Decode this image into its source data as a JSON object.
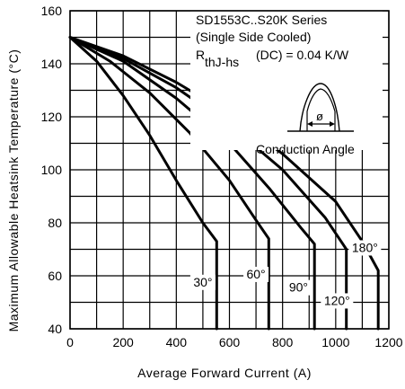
{
  "chart_data": {
    "type": "line",
    "title_lines": [
      "SD1553C..S20K Series",
      "(Single Side Cooled)",
      "R",
      "thJ-hs",
      "(DC) = 0.04 K/W"
    ],
    "xlabel": "Average Forward Current (A)",
    "ylabel": "Maximum Allowable Heatsink Temperature (°C)",
    "xlim": [
      0,
      1200
    ],
    "ylim": [
      40,
      160
    ],
    "xticks": [
      0,
      200,
      400,
      600,
      800,
      1000,
      1200
    ],
    "yticks": [
      40,
      60,
      80,
      100,
      120,
      140,
      160
    ],
    "grid": true,
    "inset_label": "Conduction Angle",
    "inset_symbol": "ø",
    "series": [
      {
        "name": "30°",
        "x": [
          0,
          100,
          200,
          300,
          400,
          500,
          552,
          552
        ],
        "y": [
          150,
          141,
          128,
          113,
          96,
          80,
          73,
          40
        ]
      },
      {
        "name": "60°",
        "x": [
          0,
          150,
          300,
          450,
          600,
          700,
          748,
          748
        ],
        "y": [
          150,
          141,
          129,
          114,
          96,
          81,
          74,
          40
        ]
      },
      {
        "name": "90°",
        "x": [
          0,
          200,
          400,
          600,
          750,
          870,
          920,
          920
        ],
        "y": [
          150,
          141,
          127,
          110,
          93,
          78,
          72,
          40
        ]
      },
      {
        "name": "120°",
        "x": [
          0,
          200,
          400,
          600,
          800,
          960,
          1040,
          1040
        ],
        "y": [
          150,
          142,
          131,
          117,
          100,
          82,
          70,
          40
        ]
      },
      {
        "name": "180°",
        "x": [
          0,
          200,
          400,
          600,
          800,
          1000,
          1100,
          1160,
          1160
        ],
        "y": [
          150,
          143,
          133,
          121,
          106,
          88,
          73,
          62,
          40
        ]
      }
    ]
  }
}
